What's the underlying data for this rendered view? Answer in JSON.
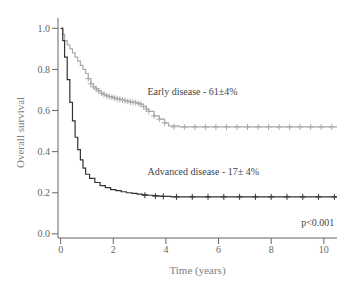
{
  "chart_data": {
    "type": "line",
    "title": "",
    "xlabel": "Time (years)",
    "ylabel": "Overall survival",
    "xlim": [
      -0.1,
      10.5
    ],
    "ylim": [
      -0.02,
      1.05
    ],
    "xticks": [
      0,
      2,
      4,
      6,
      8,
      10
    ],
    "yticks": [
      {
        "value": 0.0,
        "label": "0.0"
      },
      0.2,
      0.4,
      0.6,
      0.8,
      {
        "value": 1.0,
        "label": "1.0"
      }
    ],
    "grid": false,
    "series": [
      {
        "type": "line",
        "line_style": "step",
        "color": "#aaaaaa",
        "x": [
          0,
          0.08,
          0.15,
          0.25,
          0.35,
          0.45,
          0.55,
          0.65,
          0.75,
          0.85,
          0.95,
          1.05,
          1.15,
          1.25,
          1.35,
          1.45,
          1.55,
          1.65,
          1.75,
          1.85,
          1.95,
          2.05,
          2.15,
          2.25,
          2.35,
          2.45,
          2.55,
          2.65,
          2.75,
          2.85,
          2.95,
          3.05,
          3.15,
          3.25,
          3.35,
          3.55,
          3.75,
          3.95,
          4.1,
          4.5,
          5.0,
          5.5,
          6.0,
          6.5,
          7.0,
          7.5,
          8.0,
          8.5,
          9.0,
          9.5,
          10.0,
          10.5
        ],
        "values": [
          1.0,
          0.97,
          0.94,
          0.92,
          0.9,
          0.88,
          0.86,
          0.84,
          0.82,
          0.8,
          0.78,
          0.755,
          0.73,
          0.715,
          0.705,
          0.695,
          0.685,
          0.678,
          0.672,
          0.668,
          0.665,
          0.66,
          0.657,
          0.654,
          0.651,
          0.648,
          0.645,
          0.642,
          0.64,
          0.638,
          0.635,
          0.63,
          0.62,
          0.608,
          0.596,
          0.574,
          0.558,
          0.54,
          0.525,
          0.52,
          0.52,
          0.52,
          0.52,
          0.52,
          0.52,
          0.52,
          0.52,
          0.52,
          0.52,
          0.52,
          0.52,
          0.52
        ]
      },
      {
        "type": "line",
        "line_style": "step",
        "color": "#333333",
        "x": [
          0,
          0.08,
          0.15,
          0.25,
          0.35,
          0.45,
          0.55,
          0.65,
          0.75,
          0.85,
          0.95,
          1.1,
          1.3,
          1.5,
          1.7,
          1.9,
          2.1,
          2.3,
          2.5,
          2.7,
          2.9,
          3.1,
          3.3,
          3.5,
          3.7,
          3.9,
          4.2,
          4.8,
          5.5,
          6.5,
          7.5,
          8.5,
          9.5,
          10.5
        ],
        "values": [
          1.0,
          0.94,
          0.86,
          0.75,
          0.64,
          0.55,
          0.47,
          0.41,
          0.36,
          0.32,
          0.29,
          0.27,
          0.25,
          0.235,
          0.225,
          0.215,
          0.21,
          0.205,
          0.2,
          0.197,
          0.193,
          0.19,
          0.188,
          0.186,
          0.184,
          0.182,
          0.18,
          0.18,
          0.18,
          0.18,
          0.18,
          0.18,
          0.18,
          0.18
        ]
      },
      {
        "type": "scatter",
        "marker": "plus",
        "color": "#aaaaaa",
        "x": [
          1.05,
          1.15,
          1.25,
          1.35,
          1.45,
          1.55,
          1.65,
          1.75,
          1.85,
          1.95,
          2.05,
          2.15,
          2.25,
          2.35,
          2.45,
          2.55,
          2.65,
          2.75,
          2.85,
          2.95,
          3.05,
          3.15,
          3.25,
          3.35,
          3.55,
          3.75,
          3.95,
          4.3,
          4.7,
          5.1,
          5.5,
          5.9,
          6.3,
          6.7,
          7.1,
          7.5,
          7.9,
          8.3,
          8.7,
          9.1,
          9.5,
          9.9,
          10.3
        ],
        "values": [
          0.755,
          0.73,
          0.715,
          0.705,
          0.695,
          0.685,
          0.678,
          0.672,
          0.668,
          0.665,
          0.66,
          0.657,
          0.654,
          0.651,
          0.648,
          0.645,
          0.642,
          0.64,
          0.638,
          0.635,
          0.63,
          0.62,
          0.608,
          0.596,
          0.574,
          0.558,
          0.54,
          0.52,
          0.52,
          0.52,
          0.52,
          0.52,
          0.52,
          0.52,
          0.52,
          0.52,
          0.52,
          0.52,
          0.52,
          0.52,
          0.52,
          0.52,
          0.52
        ]
      },
      {
        "type": "scatter",
        "marker": "plus",
        "color": "#333333",
        "x": [
          3.2,
          3.6,
          3.9,
          4.4,
          5.0,
          5.6,
          6.2,
          6.8,
          7.4,
          8.0,
          8.6,
          9.2,
          9.8,
          10.4
        ],
        "values": [
          0.188,
          0.184,
          0.182,
          0.18,
          0.18,
          0.18,
          0.18,
          0.18,
          0.18,
          0.18,
          0.18,
          0.18,
          0.18,
          0.18
        ]
      }
    ],
    "annotations": [
      {
        "text": "Early disease - 61±4%",
        "x": 3.3,
        "y": 0.665
      },
      {
        "text": "Advanced disease - 17± 4%",
        "x": 3.3,
        "y": 0.275
      },
      {
        "text": "p<0.001",
        "x": 10.4,
        "y": 0.03
      }
    ]
  }
}
